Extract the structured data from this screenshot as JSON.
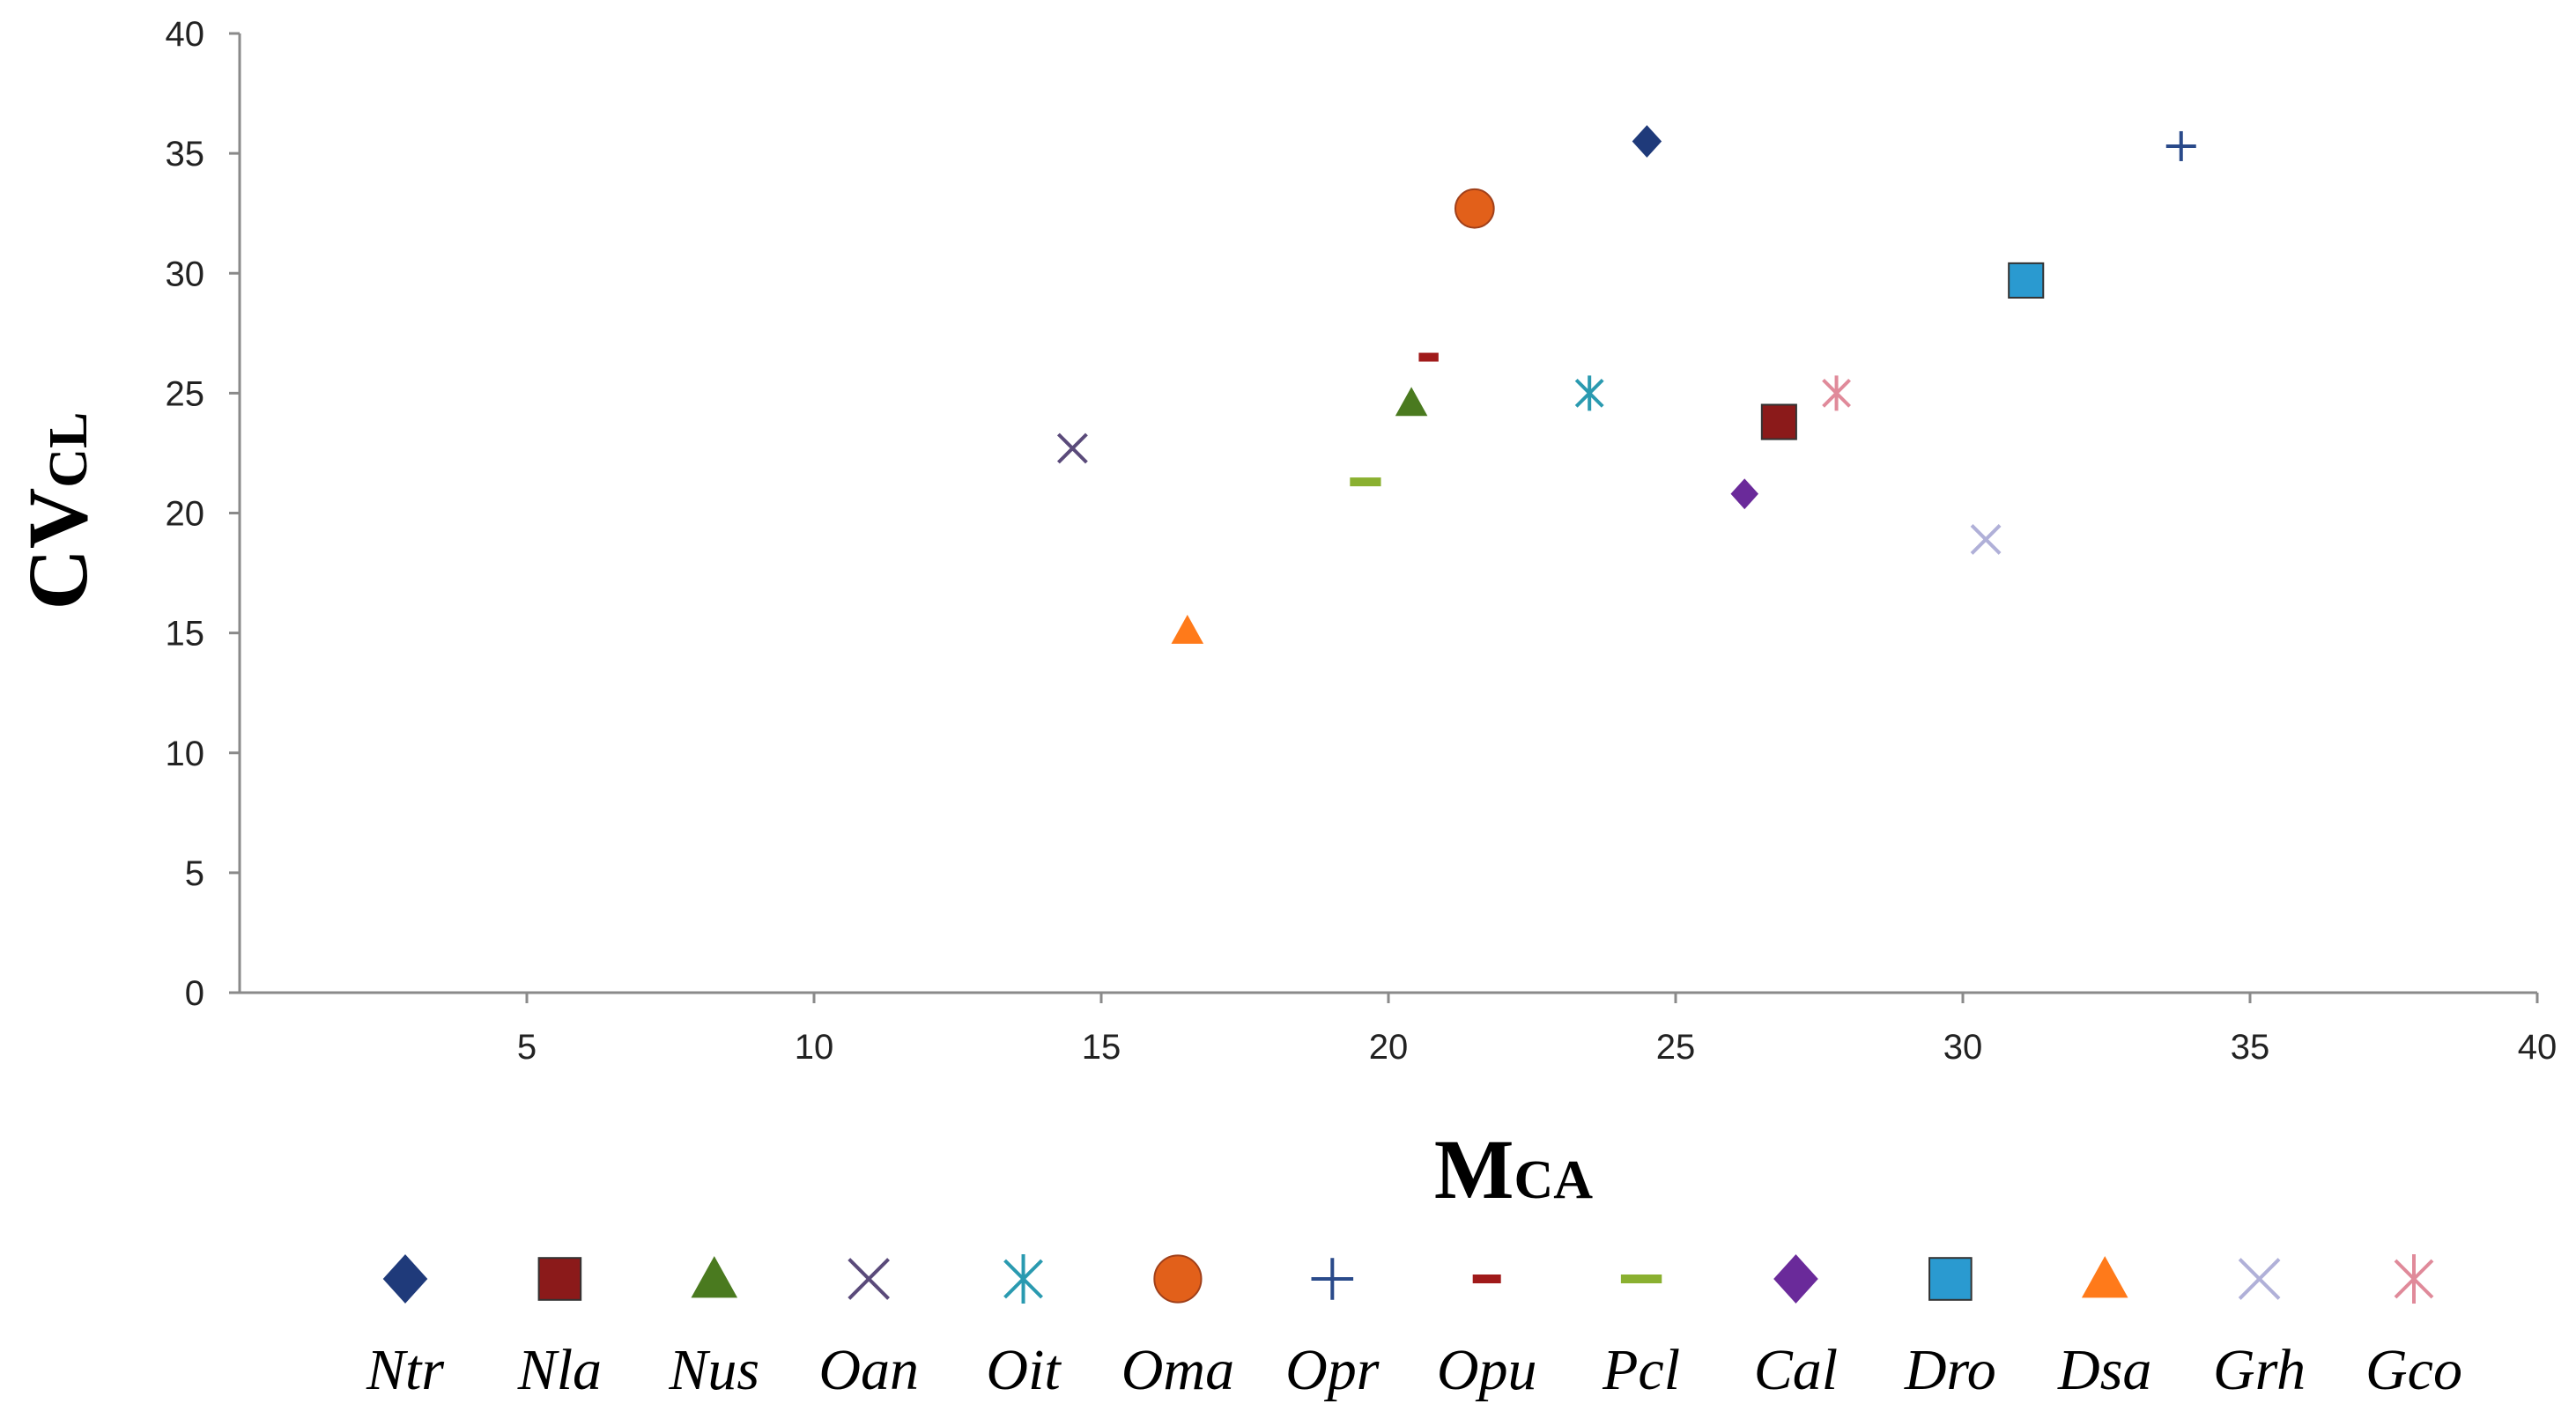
{
  "chart_data": {
    "type": "scatter",
    "title": "",
    "xlabel": {
      "main": "M",
      "sub": "CA"
    },
    "ylabel": {
      "main": "CV",
      "sub": "CL"
    },
    "xlim": [
      0,
      40
    ],
    "ylim": [
      0,
      40
    ],
    "x_ticks": [
      "5",
      "10",
      "15",
      "20",
      "25",
      "30",
      "35",
      "40"
    ],
    "y_ticks": [
      "0",
      "5",
      "10",
      "15",
      "20",
      "25",
      "30",
      "35",
      "40"
    ],
    "grid": false,
    "legend_position": "bottom",
    "series": [
      {
        "name": "Ntr",
        "x": 24.5,
        "y": 35.5,
        "marker": "diamond",
        "color": "#1f3a7a"
      },
      {
        "name": "Nla",
        "x": 26.8,
        "y": 23.8,
        "marker": "square",
        "color": "#8b1a1a"
      },
      {
        "name": "Nus",
        "x": 20.4,
        "y": 24.6,
        "marker": "triangle",
        "color": "#4a7a1f"
      },
      {
        "name": "Oan",
        "x": 14.5,
        "y": 22.7,
        "marker": "x",
        "color": "#5a4a7a"
      },
      {
        "name": "Oit",
        "x": 23.5,
        "y": 25.0,
        "marker": "star",
        "color": "#2a9ab0"
      },
      {
        "name": "Oma",
        "x": 21.5,
        "y": 32.7,
        "marker": "circle",
        "color": "#e2601a"
      },
      {
        "name": "Opr",
        "x": 33.8,
        "y": 35.3,
        "marker": "plus",
        "color": "#2a4a8a"
      },
      {
        "name": "Opu",
        "x": 20.7,
        "y": 26.5,
        "marker": "dash",
        "color": "#a01a1a"
      },
      {
        "name": "Pcl",
        "x": 19.6,
        "y": 21.3,
        "marker": "dash",
        "color": "#8ab030"
      },
      {
        "name": "Cal",
        "x": 26.2,
        "y": 20.8,
        "marker": "diamond",
        "color": "#6a2a9a"
      },
      {
        "name": "Dro",
        "x": 31.1,
        "y": 29.7,
        "marker": "square",
        "color": "#2a9ad0"
      },
      {
        "name": "Dsa",
        "x": 16.5,
        "y": 15.1,
        "marker": "triangle",
        "color": "#ff7a1a"
      },
      {
        "name": "Grh",
        "x": 30.4,
        "y": 18.9,
        "marker": "x",
        "color": "#b0b0d8"
      },
      {
        "name": "Gco",
        "x": 27.8,
        "y": 25.0,
        "marker": "star",
        "color": "#e08a9a"
      }
    ]
  }
}
